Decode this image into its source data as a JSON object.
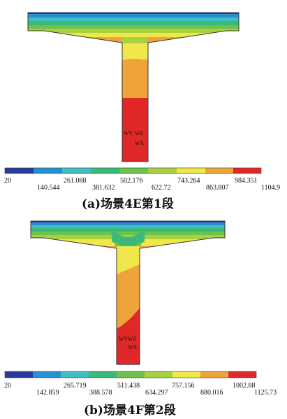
{
  "panels": [
    {
      "id": "a",
      "caption": "(a)场景4E第1段",
      "axis_labels": [
        "WY",
        "WZ",
        "WX"
      ],
      "legend_ticks_top": [
        "20",
        "261.088",
        "502.176",
        "743.264",
        "984.351"
      ],
      "legend_ticks_bottom": [
        "140.544",
        "381.632",
        "622.72",
        "863.807",
        "1104.9"
      ]
    },
    {
      "id": "b",
      "caption": "(b)场景4F第2段",
      "axis_labels": [
        "WY",
        "WZ",
        "WX"
      ],
      "legend_ticks_top": [
        "20",
        "265.719",
        "511.438",
        "757.156",
        "1002.88"
      ],
      "legend_ticks_bottom": [
        "142.859",
        "388.578",
        "634.297",
        "880.016",
        "1125.73"
      ]
    }
  ],
  "colors": {
    "band_1": "#2a3a9a",
    "band_2": "#2790d0",
    "band_3": "#3fbfc0",
    "band_4": "#3cb878",
    "band_5": "#6cc24a",
    "band_6": "#a8d140",
    "band_7": "#f0e84a",
    "band_8": "#eea43a",
    "band_9": "#e02828"
  }
}
